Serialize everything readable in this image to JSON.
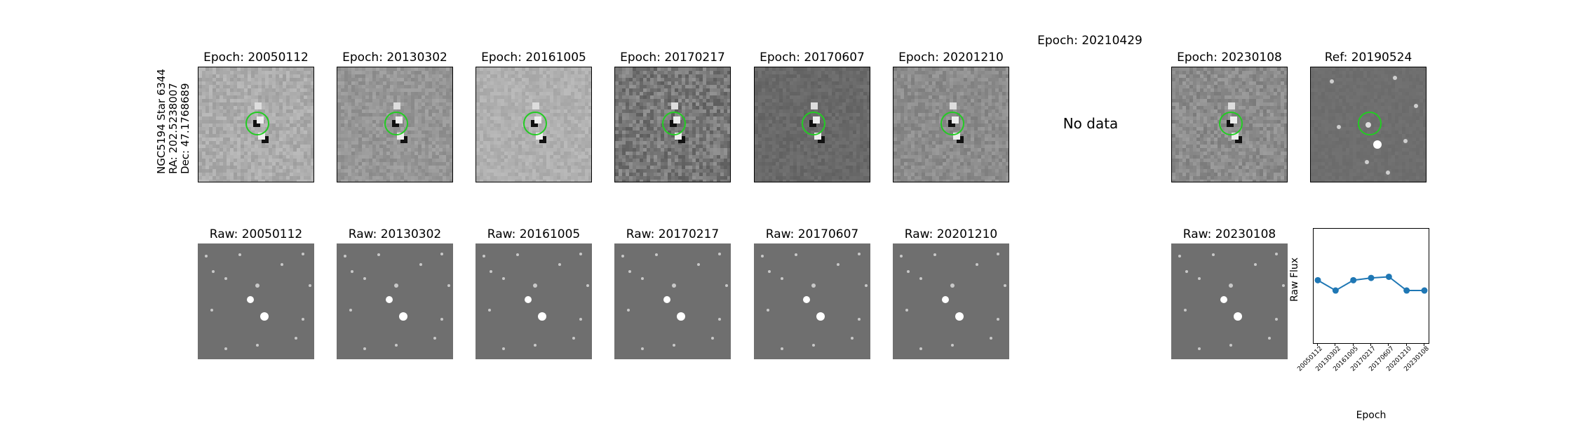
{
  "side_label": {
    "line1": "NGC5194 Star 6344",
    "line2": "RA: 202.5238007",
    "line3": "Dec: 47.1768689"
  },
  "diff_titles": [
    "Epoch: 20050112",
    "Epoch: 20130302",
    "Epoch: 20161005",
    "Epoch: 20170217",
    "Epoch: 20170607",
    "Epoch: 20201210",
    "Epoch: 20210429",
    "Epoch: 20230108",
    "Ref: 20190524"
  ],
  "no_data_text": "No data",
  "raw_titles": [
    "Raw: 20050112",
    "Raw: 20130302",
    "Raw: 20161005",
    "Raw: 20170217",
    "Raw: 20170607",
    "Raw: 20201210",
    "",
    "Raw: 20230108"
  ],
  "colors": {
    "circle": "#22cc22",
    "series": "#1f77b4"
  },
  "chart_data": {
    "type": "line",
    "x": [
      "20050112",
      "20130302",
      "20161005",
      "20170217",
      "20170607",
      "20201210",
      "20230108"
    ],
    "series": [
      {
        "values": [
          0.55,
          0.46,
          0.55,
          0.57,
          0.58,
          0.46,
          0.46
        ]
      }
    ],
    "xlabel": "Epoch",
    "ylabel": "Raw Flux",
    "ylim": [
      0,
      1
    ]
  }
}
